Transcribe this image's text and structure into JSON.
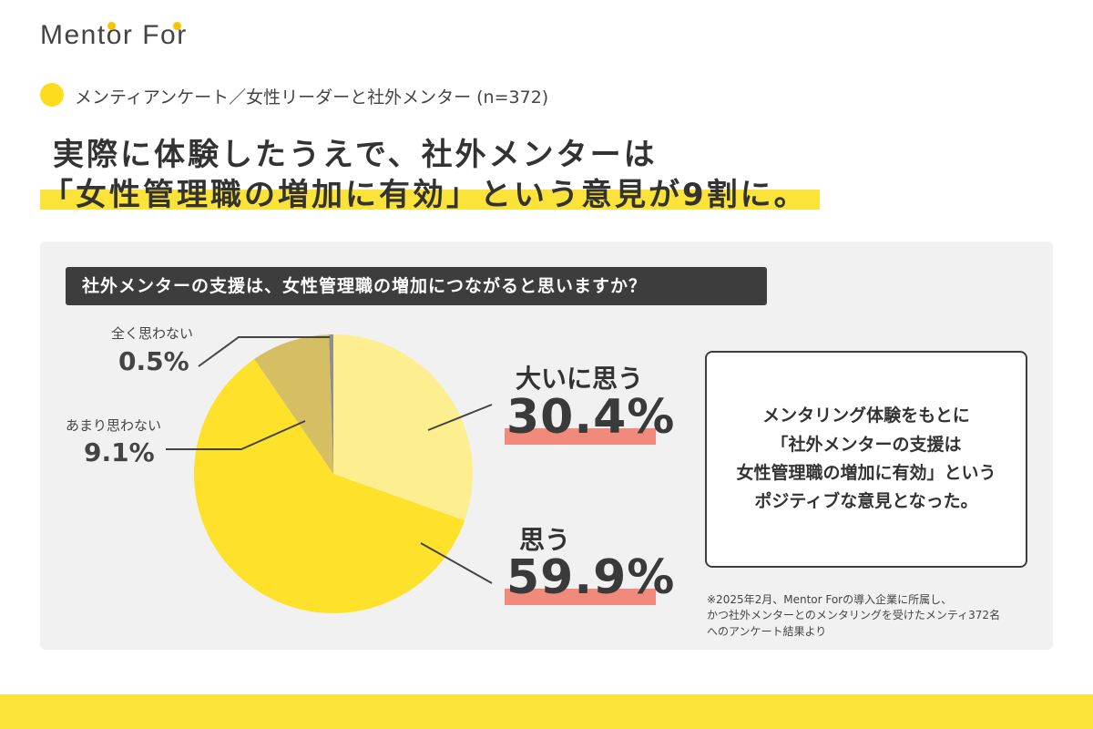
{
  "brand": {
    "logo_text": "Mentor For"
  },
  "survey": {
    "label": "メンティアンケート／女性リーダーと社外メンター (n=372)"
  },
  "headline": {
    "line1": "実際に体験したうえで、社外メンターは",
    "line2": "「女性管理職の増加に有効」という意見が9割に。"
  },
  "question": "社外メンターの支援は、女性管理職の増加につながると思いますか？",
  "chart_data": {
    "type": "pie",
    "title": "社外メンターの支援は、女性管理職の増加につながると思いますか？",
    "slices": [
      {
        "label": "大いに思う",
        "value": 30.4,
        "display": "30.4%",
        "color": "#fdee8f"
      },
      {
        "label": "思う",
        "value": 59.9,
        "display": "59.9%",
        "color": "#fde12a"
      },
      {
        "label": "あまり思わない",
        "value": 9.1,
        "display": "9.1%",
        "color": "#d6bf63"
      },
      {
        "label": "全く思わない",
        "value": 0.5,
        "display": "0.5%",
        "color": "#8f8f8f"
      }
    ]
  },
  "summary": {
    "lines": [
      "メンタリング体験をもとに",
      "「社外メンターの支援は",
      "女性管理職の増加に有効」という",
      "ポジティブな意見となった。"
    ]
  },
  "footnote": {
    "lines": [
      "※2025年2月、Mentor Forの導入企業に所属し、",
      "かつ社外メンターとのメンタリングを受けたメンティ372名",
      "へのアンケート結果より"
    ]
  },
  "colors": {
    "accent_yellow": "#fce33a",
    "value_highlight": "#f08a7a",
    "dark": "#3d3d3d"
  }
}
